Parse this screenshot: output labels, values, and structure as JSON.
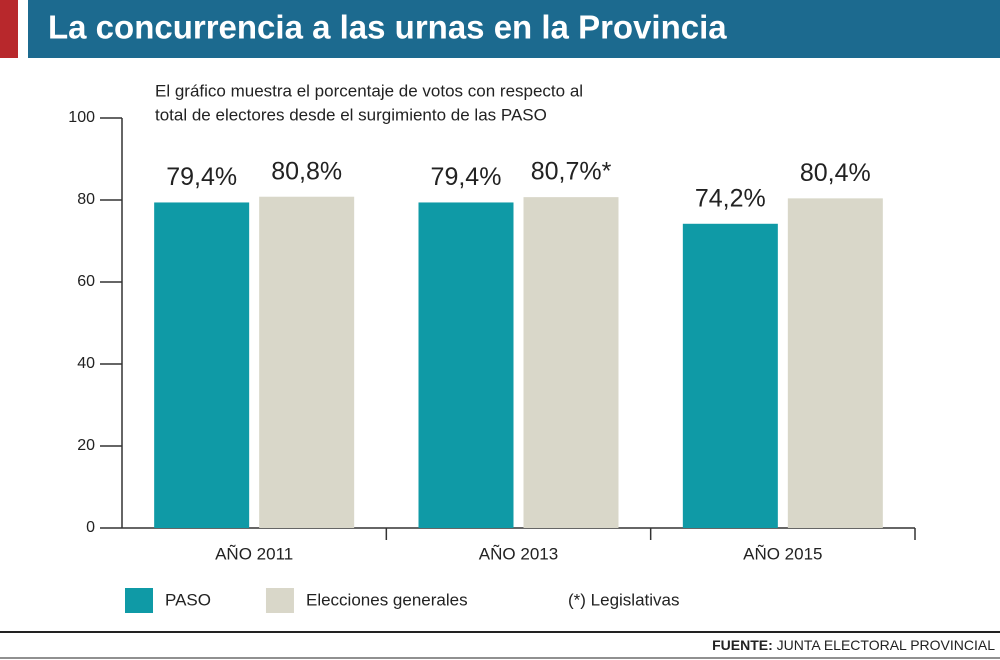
{
  "chart_data": {
    "type": "bar",
    "title": "La concurrencia a las urnas en la Provincia",
    "subtitle": [
      "El gráfico muestra el porcentaje de votos con respecto al",
      "total de electores desde el surgimiento de las PASO"
    ],
    "categories": [
      "AÑO 2011",
      "AÑO 2013",
      "AÑO 2015"
    ],
    "series": [
      {
        "name": "PASO",
        "color": "#0f9aa6",
        "values": [
          79.4,
          79.4,
          74.2
        ],
        "value_labels": [
          "79,4%",
          "79,4%",
          "74,2%"
        ]
      },
      {
        "name": "Elecciones generales",
        "color": "#d9d7c9",
        "values": [
          80.8,
          80.7,
          80.4
        ],
        "value_labels": [
          "80,8%",
          "80,7%*",
          "80,4%"
        ]
      }
    ],
    "legend_note": "(*) Legislativas",
    "ylim": [
      0,
      100
    ],
    "yticks": [
      0,
      20,
      40,
      60,
      80,
      100
    ],
    "grid": false,
    "source_label": "FUENTE:",
    "source": "JUNTA ELECTORAL PROVINCIAL"
  }
}
